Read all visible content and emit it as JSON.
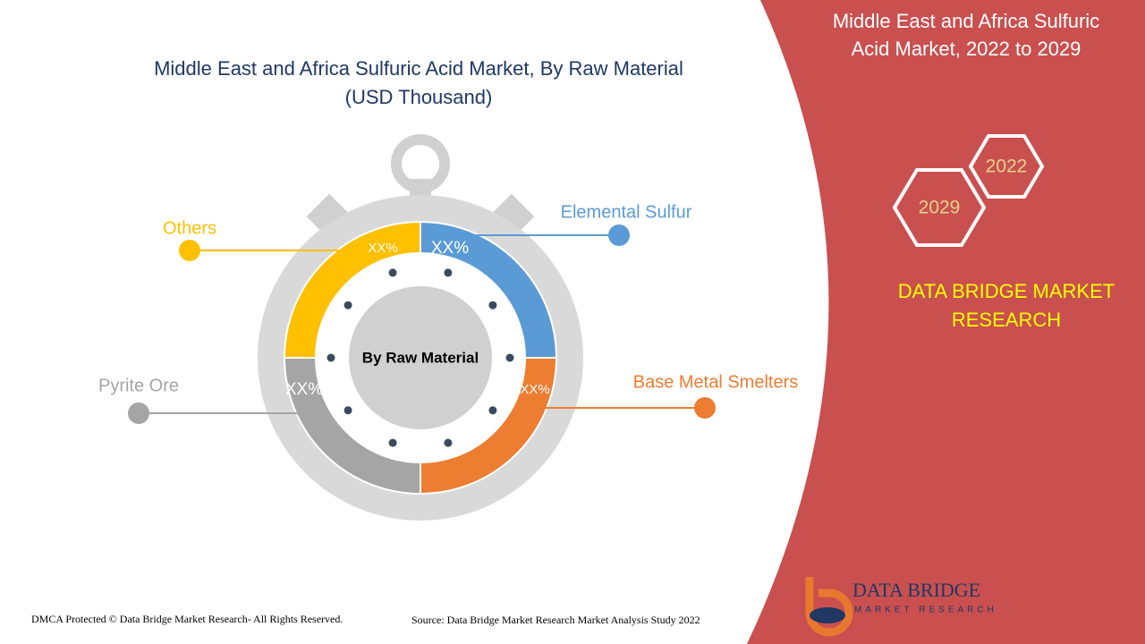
{
  "title": "Middle East and Africa Sulfuric Acid Market, By Raw Material",
  "unit": "(USD Thousand)",
  "center_label": "By Raw Material",
  "segments": [
    {
      "label": "Elemental Sulfur",
      "value_label": "XX%",
      "color": "#5b9bd5"
    },
    {
      "label": "Base Metal Smelters",
      "value_label": "XX%",
      "color": "#ed7d31"
    },
    {
      "label": "Pyrite Ore",
      "value_label": "XX%",
      "color": "#a5a5a5"
    },
    {
      "label": "Others",
      "value_label": "XX%",
      "color": "#ffc000"
    }
  ],
  "side_panel": {
    "title": "Middle East and Africa Sulfuric Acid Market, 2022 to 2029",
    "years": [
      "2022",
      "2029"
    ],
    "brand": "DATA BRIDGE MARKET RESEARCH"
  },
  "logo": {
    "name": "DATA BRIDGE",
    "tagline": "MARKET RESEARCH"
  },
  "footer": {
    "copyright": "DMCA Protected © Data Bridge Market Research- All Rights Reserved.",
    "source": "Source: Data Bridge Market Research Market Analysis Study 2022"
  }
}
